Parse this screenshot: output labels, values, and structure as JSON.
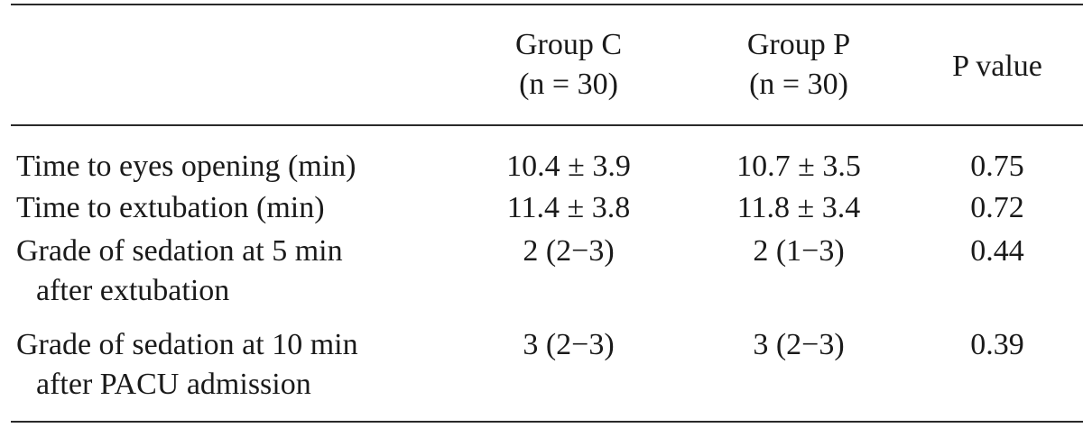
{
  "table": {
    "columns": {
      "group_c": {
        "name": "Group C",
        "n": "(n = 30)"
      },
      "group_p": {
        "name": "Group P",
        "n": "(n = 30)"
      },
      "p_value": "P value"
    },
    "rows": [
      {
        "label_line1": "Time to eyes opening (min)",
        "label_line2": "",
        "group_c": "10.4 ± 3.9",
        "group_p": "10.7 ± 3.5",
        "p_value": "0.75"
      },
      {
        "label_line1": "Time to extubation (min)",
        "label_line2": "",
        "group_c": "11.4 ± 3.8",
        "group_p": "11.8 ± 3.4",
        "p_value": "0.72"
      },
      {
        "label_line1": "Grade of sedation at 5 min",
        "label_line2": "after extubation",
        "group_c": "2 (2−3)",
        "group_p": "2 (1−3)",
        "p_value": "0.44"
      },
      {
        "label_line1": "Grade of sedation at 10 min",
        "label_line2": "after PACU admission",
        "group_c": "3 (2−3)",
        "group_p": "3 (2−3)",
        "p_value": "0.39"
      }
    ]
  }
}
